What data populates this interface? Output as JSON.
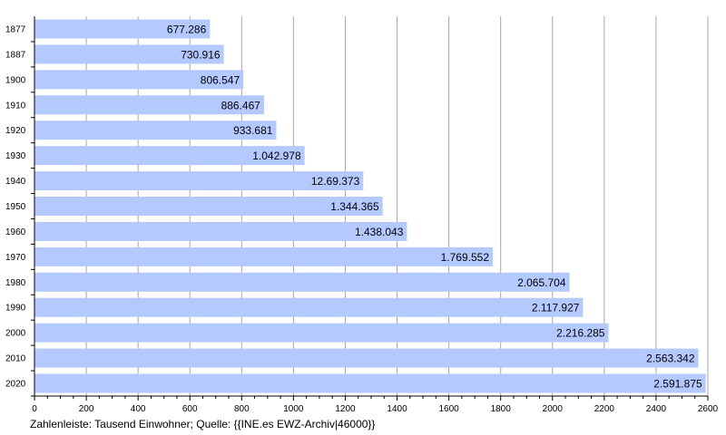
{
  "footer_note": "Zahlenleiste: Tausend Einwohner; Quelle: {{INE.es EWZ-Archiv|46000}}",
  "colors": {
    "bar": "#b3c9ff",
    "grid": "#a6a6a6",
    "axis": "#000000",
    "text": "#000000"
  },
  "chart_data": {
    "type": "bar",
    "orientation": "horizontal",
    "categories": [
      "1877",
      "1887",
      "1900",
      "1910",
      "1920",
      "1930",
      "1940",
      "1950",
      "1960",
      "1970",
      "1980",
      "1990",
      "2000",
      "2010",
      "2020"
    ],
    "values": [
      677.286,
      730.916,
      806.547,
      886.467,
      933.681,
      1042.978,
      1269.373,
      1344.365,
      1438.043,
      1769.552,
      2065.704,
      2117.927,
      2216.285,
      2563.342,
      2591.875
    ],
    "value_labels": [
      "677.286",
      "730.916",
      "806.547",
      "886.467",
      "933.681",
      "1.042.978",
      "12.69.373",
      "1.344.365",
      "1.438.043",
      "1.769.552",
      "2.065.704",
      "2.117.927",
      "2.216.285",
      "2.563.342",
      "2.591.875"
    ],
    "xlim": [
      0,
      2600
    ],
    "xticks": [
      0,
      200,
      400,
      600,
      800,
      1000,
      1200,
      1400,
      1600,
      1800,
      2000,
      2200,
      2400,
      2600
    ],
    "grid": true,
    "legend": "none"
  }
}
